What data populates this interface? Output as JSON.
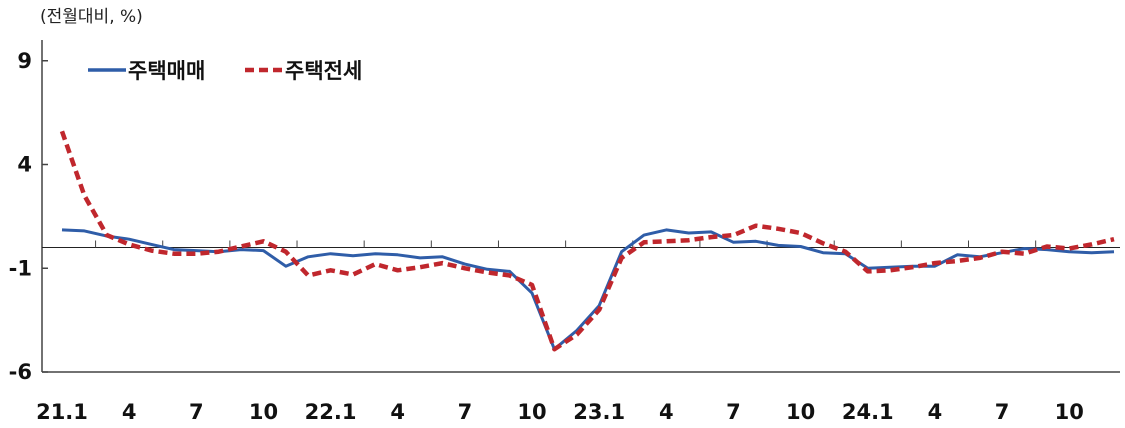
{
  "chart_data": {
    "type": "line",
    "unit_label": "(전월대비, %)",
    "xlabel": "",
    "ylabel": "",
    "ylim": [
      -6,
      10
    ],
    "y_ticks": [
      "9",
      "4",
      "-1",
      "-6"
    ],
    "y_tick_values": [
      9,
      4,
      -1,
      -6
    ],
    "x_tick_labels": [
      "21.1",
      "4",
      "7",
      "10",
      "22.1",
      "4",
      "7",
      "10",
      "23.1",
      "4",
      "7",
      "10",
      "24.1",
      "4",
      "7",
      "10"
    ],
    "x_tick_month_index": [
      0,
      3,
      6,
      9,
      12,
      15,
      18,
      21,
      24,
      27,
      30,
      33,
      36,
      39,
      42,
      45
    ],
    "period": "2021.01 ~ 2024.12 (monthly)",
    "legend_position": "top-left",
    "series": [
      {
        "name": "주택매매",
        "color": "#2f5da8",
        "style": "solid",
        "values": [
          0.85,
          0.8,
          0.55,
          0.4,
          0.15,
          -0.1,
          -0.15,
          -0.2,
          -0.1,
          -0.15,
          -0.9,
          -0.45,
          -0.3,
          -0.4,
          -0.3,
          -0.35,
          -0.5,
          -0.45,
          -0.8,
          -1.05,
          -1.15,
          -2.2,
          -4.9,
          -4.0,
          -2.8,
          -0.2,
          0.6,
          0.85,
          0.7,
          0.75,
          0.25,
          0.3,
          0.1,
          0.05,
          -0.25,
          -0.3,
          -1.0,
          -0.95,
          -0.9,
          -0.9,
          -0.35,
          -0.45,
          -0.25,
          -0.05,
          -0.1,
          -0.2,
          -0.25,
          -0.2
        ]
      },
      {
        "name": "주택전세",
        "color": "#c0272d",
        "style": "dashed",
        "values": [
          5.6,
          2.5,
          0.6,
          0.15,
          -0.15,
          -0.3,
          -0.3,
          -0.2,
          0.05,
          0.3,
          -0.2,
          -1.35,
          -1.1,
          -1.3,
          -0.8,
          -1.1,
          -0.95,
          -0.75,
          -1.0,
          -1.2,
          -1.35,
          -1.8,
          -4.9,
          -4.2,
          -3.0,
          -0.5,
          0.25,
          0.3,
          0.35,
          0.5,
          0.6,
          1.05,
          0.9,
          0.7,
          0.2,
          -0.2,
          -1.15,
          -1.1,
          -0.95,
          -0.75,
          -0.65,
          -0.5,
          -0.2,
          -0.3,
          0.05,
          -0.05,
          0.15,
          0.4
        ]
      }
    ]
  }
}
